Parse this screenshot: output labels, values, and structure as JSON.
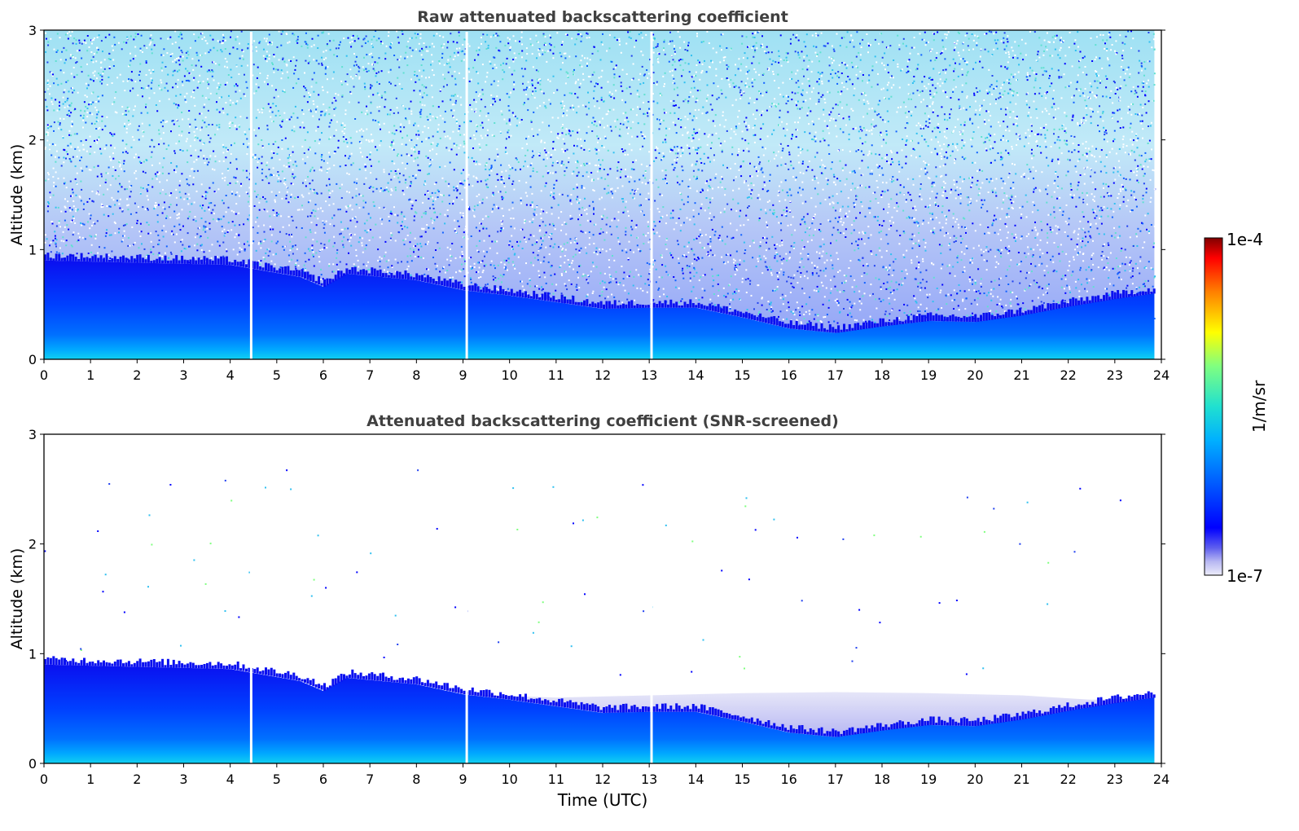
{
  "chart_data": [
    {
      "type": "heatmap",
      "title": "Raw attenuated backscattering coefficient",
      "xlabel": "",
      "ylabel": "Altitude (km)",
      "xlim": [
        0,
        24
      ],
      "ylim": [
        0,
        3
      ],
      "xticks": [
        0,
        1,
        2,
        3,
        4,
        5,
        6,
        7,
        8,
        9,
        10,
        11,
        12,
        13,
        14,
        15,
        16,
        17,
        18,
        19,
        20,
        21,
        22,
        23,
        24
      ],
      "yticks": [
        0,
        1,
        2,
        3
      ],
      "screened": false,
      "data_gaps_utc": [
        4.45,
        9.08,
        13.05
      ],
      "data_end_utc": 23.85,
      "aerosol_layer_top_km": [
        {
          "x": 0,
          "y": 0.9
        },
        {
          "x": 2,
          "y": 0.88
        },
        {
          "x": 4,
          "y": 0.86
        },
        {
          "x": 5.5,
          "y": 0.75
        },
        {
          "x": 6,
          "y": 0.66
        },
        {
          "x": 6.5,
          "y": 0.78
        },
        {
          "x": 8,
          "y": 0.72
        },
        {
          "x": 9,
          "y": 0.63
        },
        {
          "x": 10,
          "y": 0.58
        },
        {
          "x": 11,
          "y": 0.52
        },
        {
          "x": 12,
          "y": 0.46
        },
        {
          "x": 13,
          "y": 0.47
        },
        {
          "x": 14,
          "y": 0.47
        },
        {
          "x": 15,
          "y": 0.38
        },
        {
          "x": 16,
          "y": 0.28
        },
        {
          "x": 17,
          "y": 0.24
        },
        {
          "x": 18,
          "y": 0.3
        },
        {
          "x": 19,
          "y": 0.35
        },
        {
          "x": 20,
          "y": 0.34
        },
        {
          "x": 21,
          "y": 0.4
        },
        {
          "x": 22,
          "y": 0.48
        },
        {
          "x": 23,
          "y": 0.55
        },
        {
          "x": 23.85,
          "y": 0.6
        }
      ]
    },
    {
      "type": "heatmap",
      "title": "Attenuated backscattering coefficient (SNR-screened)",
      "xlabel": "Time (UTC)",
      "ylabel": "Altitude (km)",
      "xlim": [
        0,
        24
      ],
      "ylim": [
        0,
        3
      ],
      "xticks": [
        0,
        1,
        2,
        3,
        4,
        5,
        6,
        7,
        8,
        9,
        10,
        11,
        12,
        13,
        14,
        15,
        16,
        17,
        18,
        19,
        20,
        21,
        22,
        23,
        24
      ],
      "yticks": [
        0,
        1,
        2,
        3
      ],
      "screened": true,
      "data_gaps_utc": [
        4.45,
        9.08,
        13.05
      ],
      "data_end_utc": 23.85,
      "faint_layer_top_km": [
        {
          "x": 9,
          "y": 0.63
        },
        {
          "x": 11,
          "y": 0.6
        },
        {
          "x": 13,
          "y": 0.62
        },
        {
          "x": 15,
          "y": 0.64
        },
        {
          "x": 17,
          "y": 0.65
        },
        {
          "x": 19,
          "y": 0.64
        },
        {
          "x": 21,
          "y": 0.62
        },
        {
          "x": 22.5,
          "y": 0.58
        },
        {
          "x": 23.85,
          "y": 0.6
        }
      ],
      "aerosol_layer_top_km": [
        {
          "x": 0,
          "y": 0.9
        },
        {
          "x": 2,
          "y": 0.88
        },
        {
          "x": 4,
          "y": 0.86
        },
        {
          "x": 5.5,
          "y": 0.75
        },
        {
          "x": 6,
          "y": 0.66
        },
        {
          "x": 6.5,
          "y": 0.78
        },
        {
          "x": 8,
          "y": 0.72
        },
        {
          "x": 9,
          "y": 0.63
        },
        {
          "x": 10,
          "y": 0.58
        },
        {
          "x": 11,
          "y": 0.52
        },
        {
          "x": 12,
          "y": 0.46
        },
        {
          "x": 13,
          "y": 0.47
        },
        {
          "x": 14,
          "y": 0.47
        },
        {
          "x": 15,
          "y": 0.38
        },
        {
          "x": 16,
          "y": 0.28
        },
        {
          "x": 17,
          "y": 0.24
        },
        {
          "x": 18,
          "y": 0.3
        },
        {
          "x": 19,
          "y": 0.35
        },
        {
          "x": 20,
          "y": 0.34
        },
        {
          "x": 21,
          "y": 0.4
        },
        {
          "x": 22,
          "y": 0.48
        },
        {
          "x": 23,
          "y": 0.55
        },
        {
          "x": 23.85,
          "y": 0.6
        }
      ]
    }
  ],
  "colorbar": {
    "label": "1/m/sr",
    "max_label": "1e-4",
    "min_label": "1e-7",
    "colormap": "jet",
    "scale": "log",
    "vmin": 1e-07,
    "vmax": 0.0001
  }
}
